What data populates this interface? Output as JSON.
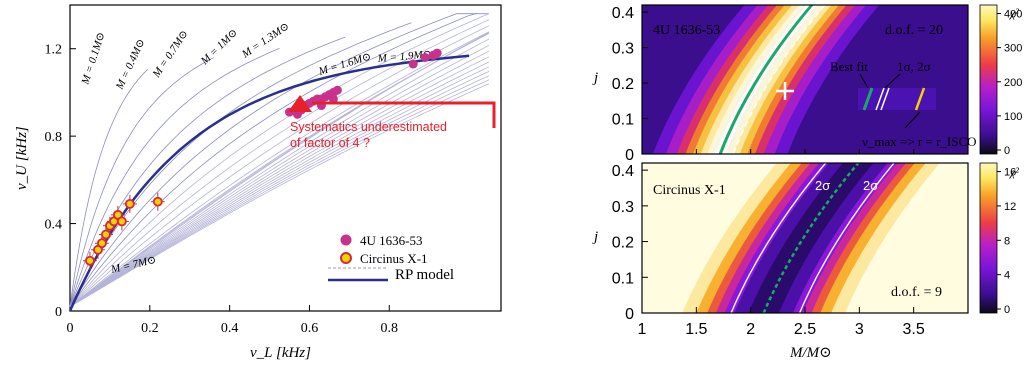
{
  "chart_data": [
    {
      "type": "scatter",
      "xlabel": "ν_L [kHz]",
      "ylabel": "ν_U [kHz]",
      "xlim": [
        0,
        1.08
      ],
      "ylim": [
        0,
        1.4
      ],
      "xticks": [
        "0.2",
        "0.4",
        "0.6",
        "0.8"
      ],
      "yticks": [
        "0.4",
        "0.8",
        "1.2"
      ],
      "curve_labels": [
        "M = 0.1M⊙",
        "M = 0.4M⊙",
        "M = 0.7M⊙",
        "M = 1M⊙",
        "M = 1.3M⊙",
        "M = 1.6M⊙",
        "M = 1.9M⊙",
        "M = 7M⊙"
      ],
      "annotation": {
        "text_lines": [
          "Systematics underestimated",
          "of factor of 4 ?"
        ],
        "color": "#e8202a"
      },
      "legend": {
        "position": "bottom-right",
        "entries": [
          "4U 1636-53",
          "Circinus X-1",
          "RP model"
        ]
      },
      "series": [
        {
          "name": "4U 1636-53",
          "color": "#c8328c",
          "points": [
            [
              0.55,
              0.91
            ],
            [
              0.57,
              0.9
            ],
            [
              0.58,
              0.92
            ],
            [
              0.59,
              0.94
            ],
            [
              0.6,
              0.95
            ],
            [
              0.61,
              0.96
            ],
            [
              0.62,
              0.97
            ],
            [
              0.63,
              0.97
            ],
            [
              0.64,
              0.98
            ],
            [
              0.65,
              0.99
            ],
            [
              0.66,
              1.0
            ],
            [
              0.67,
              1.01
            ],
            [
              0.63,
              0.94
            ],
            [
              0.66,
              0.97
            ],
            [
              0.86,
              1.13
            ],
            [
              0.89,
              1.16
            ],
            [
              0.91,
              1.17
            ],
            [
              0.92,
              1.18
            ]
          ]
        },
        {
          "name": "Circinus X-1",
          "color": "#f2d200",
          "edge": "#d6283c",
          "points": [
            [
              0.05,
              0.23
            ],
            [
              0.07,
              0.28
            ],
            [
              0.08,
              0.31
            ],
            [
              0.09,
              0.35
            ],
            [
              0.1,
              0.39
            ],
            [
              0.11,
              0.41
            ],
            [
              0.12,
              0.44
            ],
            [
              0.13,
              0.41
            ],
            [
              0.15,
              0.49
            ],
            [
              0.22,
              0.5
            ]
          ]
        },
        {
          "name": "RP model",
          "color": "#2a2f8f",
          "mass_values": [
            0.1,
            0.4,
            0.7,
            1.0,
            1.3,
            1.6,
            1.9,
            2.2,
            2.5,
            2.8,
            3.1,
            3.4,
            3.7,
            4.0,
            4.3,
            4.6,
            4.9,
            5.2,
            5.5,
            5.8,
            6.1,
            6.4,
            6.7,
            7.0
          ]
        }
      ]
    },
    {
      "type": "heatmap",
      "title": "4U 1636-53",
      "dof_label": "d.o.f. = 20",
      "ylabel": "j",
      "xlim": [
        1,
        4
      ],
      "ylim": [
        0,
        0.42
      ],
      "yticks": [
        "0",
        "0.1",
        "0.2",
        "0.3",
        "0.4"
      ],
      "colorbar": {
        "label": "χ²",
        "ticks": [
          "0",
          "100",
          "200",
          "300",
          "400"
        ]
      },
      "best_fit": {
        "M": 2.2,
        "j": 0.27
      },
      "annotations": [
        "Best fit",
        "1σ, 2σ",
        "ν_max => r = r_ISCO"
      ]
    },
    {
      "type": "heatmap",
      "title": "Circinus X-1",
      "dof_label": "d.o.f. = 9",
      "xlabel": "M/M⊙",
      "ylabel": "j",
      "xlim": [
        1,
        4
      ],
      "ylim": [
        0,
        0.42
      ],
      "xticks": [
        "1",
        "1.5",
        "2",
        "2.5",
        "3",
        "3.5"
      ],
      "yticks": [
        "0",
        "0.1",
        "0.2",
        "0.3",
        "0.4"
      ],
      "colorbar": {
        "label": "χ²",
        "ticks": [
          "0",
          "4",
          "8",
          "12",
          "16"
        ]
      },
      "contour_labels": [
        "2σ",
        "2σ"
      ]
    }
  ]
}
